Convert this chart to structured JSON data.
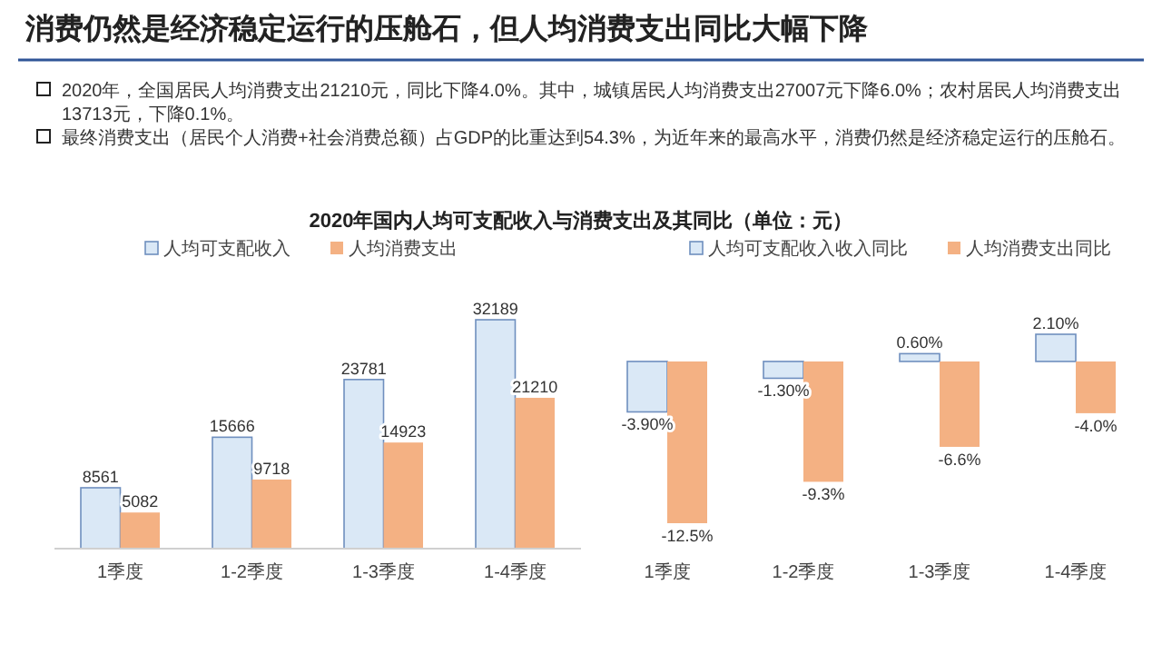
{
  "chart_data": [
    {
      "type": "bar",
      "title": "消费仍然是经济稳定运行的压舱石，但人均消费支出同比大幅下降",
      "subtitle": "2020年国内人均可支配收入与消费支出及其同比（单位：元）",
      "annotations": [
        "2020年，全国居民人均消费支出21210元，同比下降4.0%。其中，城镇居民人均消费支出27007元下降6.0%；农村居民人均消费支出13713元，下降0.1%。",
        "最终消费支出（居民个人消费+社会消费总额）占GDP的比重达到54.3%，为近年来的最高水平，消费仍然是经济稳定运行的压舱石。"
      ],
      "categories": [
        "1季度",
        "1-2季度",
        "1-3季度",
        "1-4季度"
      ],
      "series": [
        {
          "name": "人均可支配收入",
          "color": "#dae8f6",
          "values": [
            8561,
            15666,
            23781,
            32189
          ]
        },
        {
          "name": "人均消费支出",
          "color": "#f4b183",
          "values": [
            5082,
            9718,
            14923,
            21210
          ]
        }
      ],
      "data_labels": true,
      "legend": "top"
    },
    {
      "type": "bar",
      "categories": [
        "1季度",
        "1-2季度",
        "1-3季度",
        "1-4季度"
      ],
      "series": [
        {
          "name": "人均可支配收入收入同比",
          "color": "#dae8f6",
          "values": [
            -3.9,
            -1.3,
            0.6,
            2.1
          ],
          "value_labels": [
            "-3.90%",
            "-1.30%",
            "0.60%",
            "2.10%"
          ]
        },
        {
          "name": "人均消费支出同比",
          "color": "#f4b183",
          "values": [
            -12.5,
            -9.3,
            -6.6,
            -4.0
          ],
          "value_labels": [
            "-12.5%",
            "-9.3%",
            "-6.6%",
            "-4.0%"
          ]
        }
      ],
      "legend": "top"
    }
  ]
}
